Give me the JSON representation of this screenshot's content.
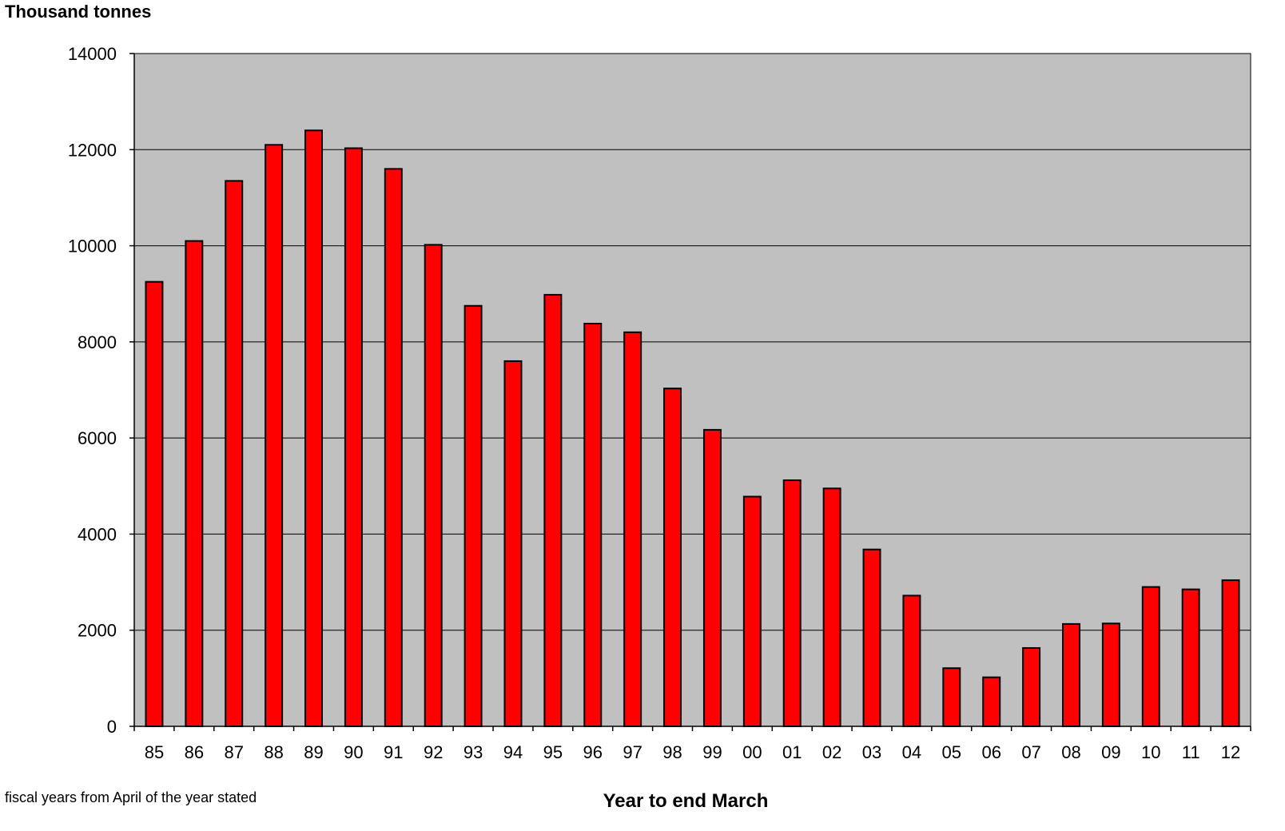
{
  "chart_data": {
    "type": "bar",
    "ylabel": "Thousand tonnes",
    "xlabel": "Year to end March",
    "footnote": "fiscal years from April of the year stated",
    "categories": [
      "85",
      "86",
      "87",
      "88",
      "89",
      "90",
      "91",
      "92",
      "93",
      "94",
      "95",
      "96",
      "97",
      "98",
      "99",
      "00",
      "01",
      "02",
      "03",
      "04",
      "05",
      "06",
      "07",
      "08",
      "09",
      "10",
      "11",
      "12"
    ],
    "values": [
      9250,
      10100,
      11350,
      12100,
      12400,
      12030,
      11600,
      10020,
      8750,
      7600,
      8980,
      8380,
      8200,
      7030,
      6170,
      4780,
      5120,
      4950,
      3680,
      2720,
      1210,
      1020,
      1630,
      2130,
      2140,
      2900,
      2850,
      3040
    ],
    "ylim": [
      0,
      14000
    ],
    "yticks": [
      0,
      2000,
      4000,
      6000,
      8000,
      10000,
      12000,
      14000
    ],
    "grid": true,
    "colors": {
      "bar_fill": "#FF0000",
      "bar_stroke": "#000000",
      "plot_background": "#C0C0C0",
      "gridline": "#000000"
    }
  }
}
